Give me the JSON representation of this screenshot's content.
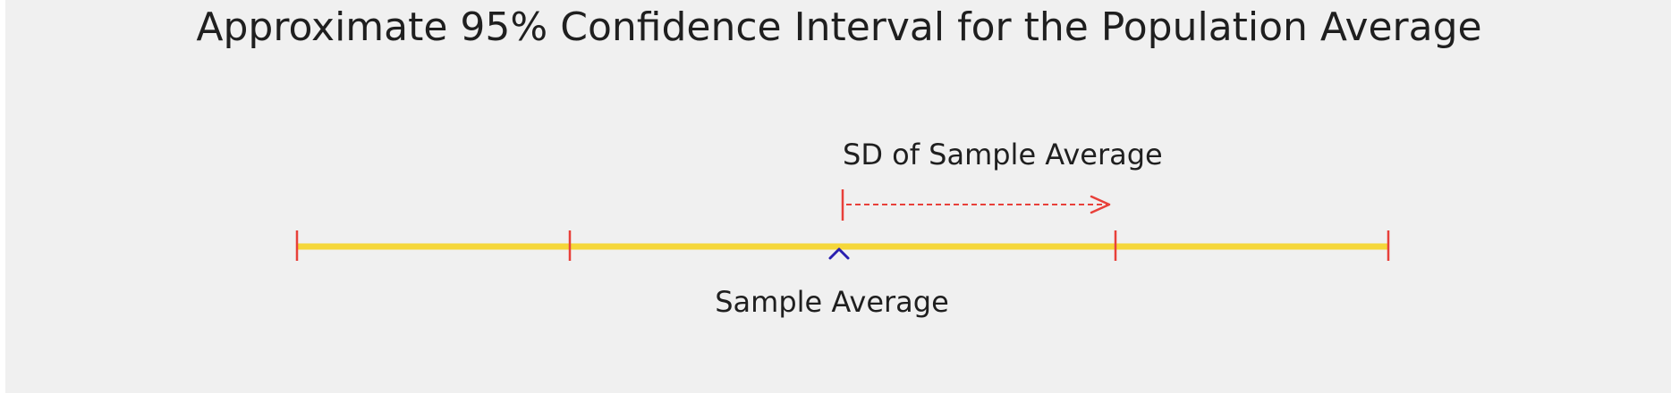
{
  "diagram": {
    "title": "Approximate 95% Confidence Interval for the Population Average",
    "sd_label": "SD of Sample Average",
    "center_label": "Sample Average",
    "colors": {
      "background": "#f0f0f0",
      "interval_line": "#f5d73a",
      "ticks": "#e8403a",
      "arrow": "#e8403a",
      "center_marker": "#2a1fb0",
      "text": "#1f1f1f"
    }
  }
}
